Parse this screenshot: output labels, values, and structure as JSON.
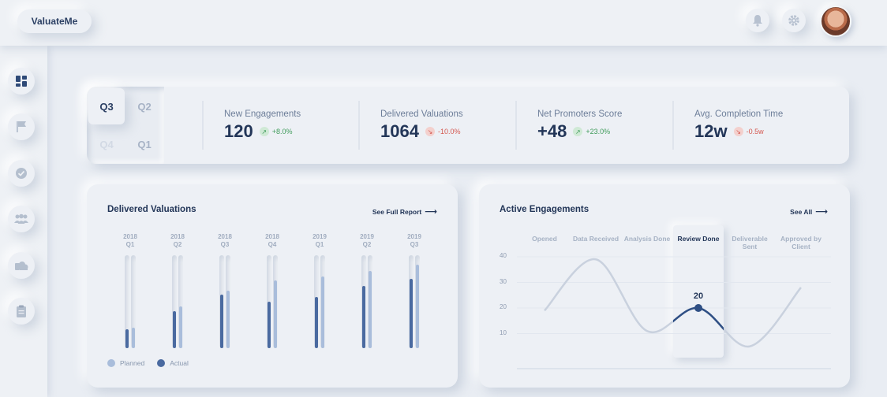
{
  "header": {
    "brand": "ValuateMe",
    "icons": [
      "bell-icon",
      "gear-icon"
    ]
  },
  "sidebar": {
    "items": [
      {
        "icon": "dashboard-icon"
      },
      {
        "icon": "flag-icon"
      },
      {
        "icon": "check-circle-icon"
      },
      {
        "icon": "team-icon"
      },
      {
        "icon": "cloud-icon"
      },
      {
        "icon": "clipboard-icon"
      }
    ]
  },
  "quarters": {
    "selected": "Q3",
    "items": [
      "Q3",
      "Q2",
      "Q4",
      "Q1"
    ]
  },
  "stats": [
    {
      "label": "New Engagements",
      "value": "120",
      "change": "+8.0%",
      "trend": "up"
    },
    {
      "label": "Delivered Valuations",
      "value": "1064",
      "change": "-10.0%",
      "trend": "down"
    },
    {
      "label": "Net Promoters Score",
      "value": "+48",
      "change": "+23.0%",
      "trend": "up"
    },
    {
      "label": "Avg. Completion Time",
      "value": "12w",
      "change": "-0.5w",
      "trend": "down"
    }
  ],
  "delivered": {
    "title": "Delivered Valuations",
    "link": "See Full Report",
    "legend": {
      "planned": "Planned",
      "actual": "Actual"
    },
    "colors": {
      "planned": "#a9bddb",
      "actual": "#4a6aa0"
    }
  },
  "active": {
    "title": "Active Engagements",
    "link": "See All",
    "stages": [
      "Opened",
      "Data Received",
      "Analysis Done",
      "Review Done",
      "Deliverable Sent",
      "Approved by Client"
    ],
    "active_stage": "Review Done",
    "highlight_value": "20"
  },
  "chart_data": [
    {
      "type": "bar",
      "title": "Delivered Valuations",
      "categories": [
        "2018 Q1",
        "2018 Q2",
        "2018 Q3",
        "2018 Q4",
        "2019 Q1",
        "2019 Q2",
        "2019 Q3"
      ],
      "series": [
        {
          "name": "Planned",
          "values": [
            22,
            45,
            62,
            73,
            77,
            83,
            90
          ]
        },
        {
          "name": "Actual",
          "values": [
            20,
            40,
            58,
            50,
            55,
            67,
            75
          ]
        }
      ],
      "ylim": [
        0,
        100
      ]
    },
    {
      "type": "line",
      "title": "Active Engagements",
      "categories": [
        "Opened",
        "Data Received",
        "Analysis Done",
        "Review Done",
        "Deliverable Sent",
        "Approved by Client"
      ],
      "y_ticks": [
        10,
        20,
        30,
        40
      ],
      "x": [
        0,
        1,
        2,
        3,
        4,
        5
      ],
      "values": [
        19,
        39,
        11,
        20,
        5,
        28
      ],
      "highlight": {
        "category": "Review Done",
        "value": 20
      },
      "ylim": [
        0,
        45
      ]
    }
  ]
}
